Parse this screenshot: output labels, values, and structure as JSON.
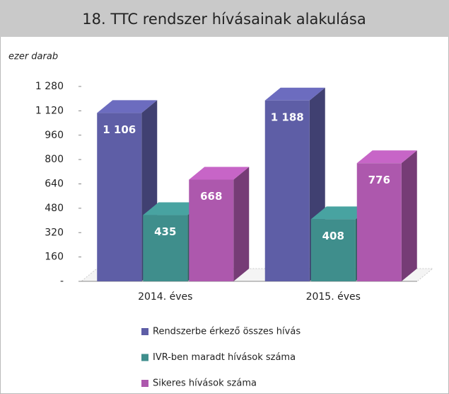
{
  "chart_data": {
    "type": "bar3d",
    "title": "18. TTC rendszer hívásainak alakulása",
    "y_label": "ezer darab",
    "categories": [
      "2014. éves",
      "2015. éves"
    ],
    "series": [
      {
        "name": "Rendszerbe érkező összes hívás",
        "color": "#5e5ea6",
        "values": [
          1106,
          1188
        ],
        "value_labels": [
          "1 106",
          "1 188"
        ]
      },
      {
        "name": "IVR-ben maradt hívások száma",
        "color": "#3f8e8c",
        "values": [
          435,
          408
        ]
      },
      {
        "name": "Sikeres hívások száma",
        "color": "#ad58ad",
        "values": [
          668,
          776
        ]
      }
    ],
    "ylim": [
      0,
      1280
    ],
    "yticks": [
      {
        "value": 0,
        "label": "-"
      },
      160,
      320,
      480,
      640,
      800,
      960,
      {
        "value": 1120,
        "label": "1 120"
      },
      {
        "value": 1280,
        "label": "1 280"
      }
    ],
    "grid": false
  }
}
